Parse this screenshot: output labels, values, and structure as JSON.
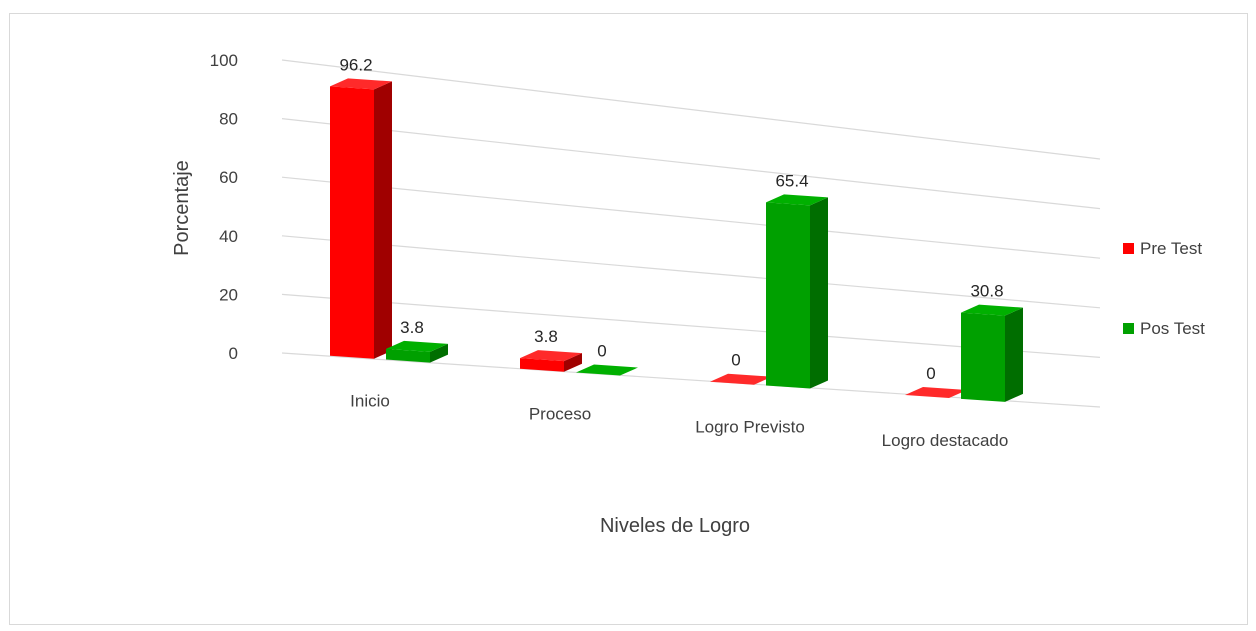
{
  "chart_data": {
    "type": "bar",
    "style": "3d-clustered-column",
    "categories": [
      "Inicio",
      "Proceso",
      "Logro Previsto",
      "Logro destacado"
    ],
    "series": [
      {
        "name": "Pre Test",
        "values": [
          96.2,
          3.8,
          0,
          0
        ],
        "color": "#ff0000"
      },
      {
        "name": "Pos Test",
        "values": [
          3.8,
          0,
          65.4,
          30.8
        ],
        "color": "#00a000"
      }
    ],
    "data_labels": [
      [
        "96.2",
        "3.8",
        "0",
        "0"
      ],
      [
        "3.8",
        "0",
        "65.4",
        "30.8"
      ]
    ],
    "yticks": [
      "0",
      "20",
      "40",
      "60",
      "80",
      "100"
    ],
    "ylim": [
      0,
      100
    ],
    "xlabel": "Niveles de Logro",
    "ylabel": "Porcentaje",
    "title": "",
    "grid": true,
    "legend_position": "right"
  }
}
